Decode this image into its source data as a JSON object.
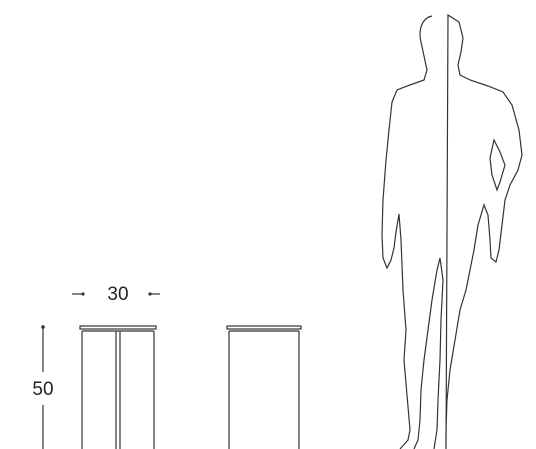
{
  "dimensions": {
    "width": "30",
    "height": "50"
  }
}
